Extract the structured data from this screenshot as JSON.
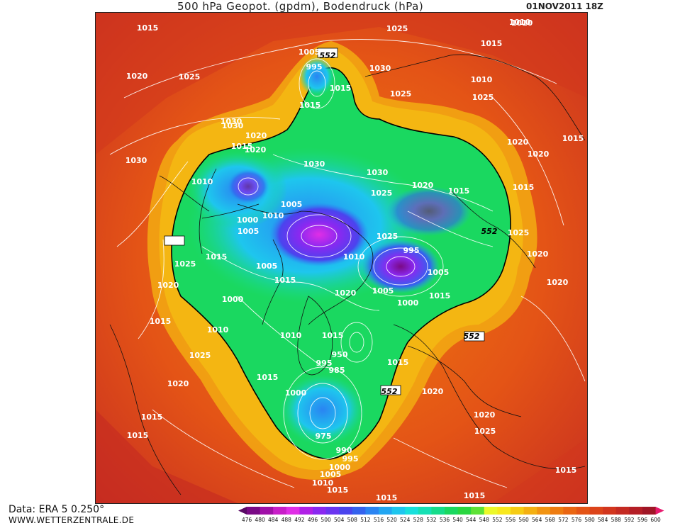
{
  "header": {
    "title": "500 hPa Geopot. (gpdm), Bodendruck (hPa)",
    "datetime": "01NOV2011 18Z"
  },
  "footer": {
    "source": "Data: ERA 5 0.250°",
    "website": "WWW.WETTERZENTRALE.DE"
  },
  "legend": {
    "levels": [
      "476",
      "480",
      "484",
      "488",
      "492",
      "496",
      "500",
      "504",
      "508",
      "512",
      "516",
      "520",
      "524",
      "528",
      "532",
      "536",
      "540",
      "544",
      "548",
      "552",
      "556",
      "560",
      "564",
      "568",
      "572",
      "576",
      "580",
      "584",
      "588",
      "592",
      "596",
      "600"
    ],
    "colors": [
      "#5a0a66",
      "#7a0a86",
      "#a010a8",
      "#c81ec8",
      "#e02ee6",
      "#b020e6",
      "#8a28f0",
      "#6a34f0",
      "#4a44ee",
      "#3462ee",
      "#2a84f2",
      "#22a6f2",
      "#1ec6ee",
      "#18e0dc",
      "#16e0b4",
      "#16dc8a",
      "#1ad860",
      "#2ad640",
      "#5ee236",
      "#ecf82a",
      "#f8e81e",
      "#f6cc14",
      "#f4b012",
      "#f29412",
      "#ee7c10",
      "#ea6612",
      "#e45416",
      "#dc441a",
      "#d2361e",
      "#c42a22",
      "#b41e26",
      "#a01626",
      "#e81a6e"
    ]
  },
  "map": {
    "contour_552_label": "552",
    "pressure_labels": [
      {
        "text": "1015"
      },
      {
        "text": "1025"
      },
      {
        "text": "1010"
      },
      {
        "text": "1015"
      },
      {
        "text": "1020"
      },
      {
        "text": "1025"
      },
      {
        "text": "1005"
      },
      {
        "text": "552"
      },
      {
        "text": "995"
      },
      {
        "text": "1030"
      },
      {
        "text": "1015"
      },
      {
        "text": "1025"
      },
      {
        "text": "1010"
      },
      {
        "text": "1030"
      },
      {
        "text": "1015"
      },
      {
        "text": "1025"
      },
      {
        "text": "1020"
      },
      {
        "text": "1015"
      },
      {
        "text": "1030"
      },
      {
        "text": "1020"
      },
      {
        "text": "1030"
      },
      {
        "text": "1030"
      },
      {
        "text": "1020"
      },
      {
        "text": "1025"
      },
      {
        "text": "1010"
      },
      {
        "text": "1015"
      },
      {
        "text": "1030"
      },
      {
        "text": "1025"
      },
      {
        "text": "1020"
      },
      {
        "text": "1015"
      },
      {
        "text": "1020"
      },
      {
        "text": "1015"
      },
      {
        "text": "1005"
      },
      {
        "text": "1010"
      },
      {
        "text": "1000"
      },
      {
        "text": "1005"
      },
      {
        "text": "1010"
      },
      {
        "text": "995"
      },
      {
        "text": "1025"
      },
      {
        "text": "552"
      },
      {
        "text": "1015"
      },
      {
        "text": "1025"
      },
      {
        "text": "1005"
      },
      {
        "text": "1015"
      },
      {
        "text": "1020"
      },
      {
        "text": "1005"
      },
      {
        "text": "1005"
      },
      {
        "text": "1000"
      },
      {
        "text": "1020"
      },
      {
        "text": "1000"
      },
      {
        "text": "1015"
      },
      {
        "text": "1020"
      },
      {
        "text": "1020"
      },
      {
        "text": "1015"
      },
      {
        "text": "1010"
      },
      {
        "text": "1010"
      },
      {
        "text": "1015"
      },
      {
        "text": "552"
      },
      {
        "text": "1025"
      },
      {
        "text": "950"
      },
      {
        "text": "995"
      },
      {
        "text": "985"
      },
      {
        "text": "1015"
      },
      {
        "text": "1015"
      },
      {
        "text": "1020"
      },
      {
        "text": "1000"
      },
      {
        "text": "552"
      },
      {
        "text": "1020"
      },
      {
        "text": "1015"
      },
      {
        "text": "1020"
      },
      {
        "text": "975"
      },
      {
        "text": "1015"
      },
      {
        "text": "1025"
      },
      {
        "text": "990"
      },
      {
        "text": "995"
      },
      {
        "text": "1000"
      },
      {
        "text": "1005"
      },
      {
        "text": "1010"
      },
      {
        "text": "1015"
      },
      {
        "text": "1015"
      },
      {
        "text": "1015"
      },
      {
        "text": "1015"
      },
      {
        "text": "1010"
      }
    ]
  }
}
